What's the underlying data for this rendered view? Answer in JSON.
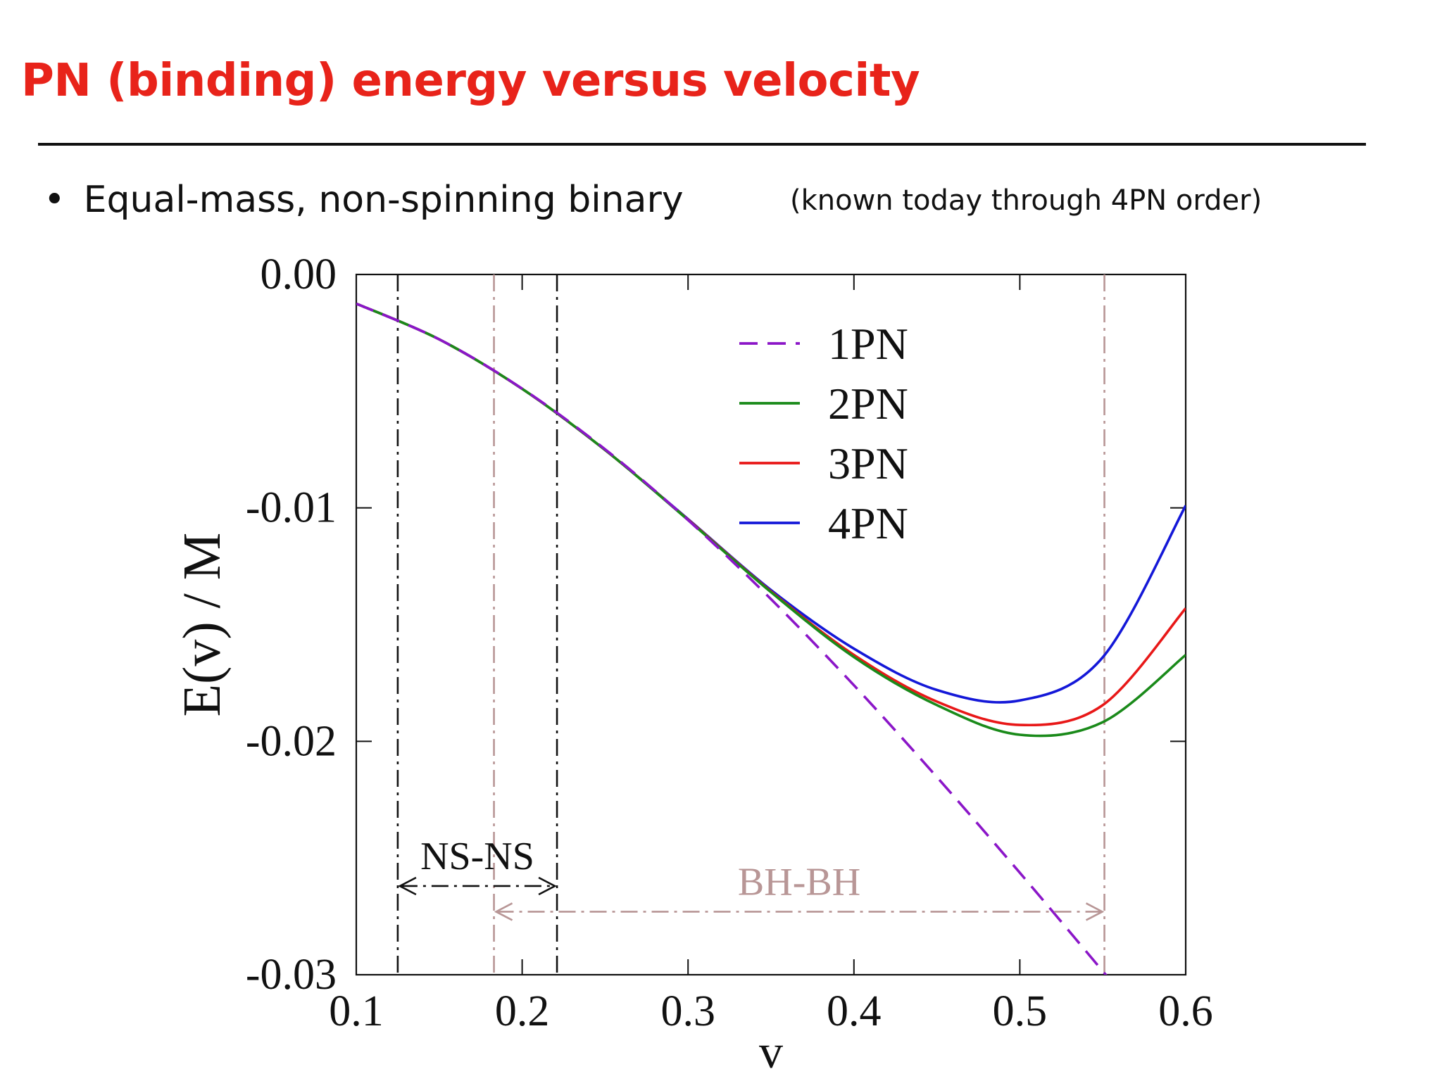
{
  "slide": {
    "title": "PN (binding) energy versus velocity",
    "bullet": "Equal-mass, non-spinning binary",
    "note": "(known today through 4PN order)",
    "title_color": "#e8231a"
  },
  "chart_data": {
    "type": "line",
    "xlabel": "v",
    "ylabel": "E(v) / M",
    "xlim": [
      0.1,
      0.6
    ],
    "ylim": [
      -0.03,
      0.0
    ],
    "xticks": [
      "0.1",
      "0.2",
      "0.3",
      "0.4",
      "0.5",
      "0.6"
    ],
    "yticks": [
      "0.00",
      "-0.01",
      "-0.02",
      "-0.03"
    ],
    "grid": false,
    "legend_position": "top-center",
    "series": [
      {
        "name": "1PN",
        "color": "#8b16c8",
        "style": "dashed",
        "x": [
          0.1,
          0.15,
          0.2,
          0.25,
          0.3,
          0.35,
          0.4,
          0.45,
          0.5,
          0.55,
          0.5625
        ],
        "y": [
          -0.00125,
          -0.00278,
          -0.00489,
          -0.00749,
          -0.01052,
          -0.01391,
          -0.0176,
          -0.02153,
          -0.02563,
          -0.02985,
          -0.0309
        ]
      },
      {
        "name": "2PN",
        "color": "#1a8a1a",
        "style": "solid",
        "x": [
          0.1,
          0.15,
          0.2,
          0.25,
          0.3,
          0.35,
          0.4,
          0.45,
          0.5,
          0.55,
          0.6
        ],
        "y": [
          -0.00125,
          -0.00278,
          -0.0049,
          -0.00752,
          -0.01052,
          -0.01361,
          -0.01639,
          -0.01845,
          -0.01972,
          -0.01918,
          -0.0163
        ]
      },
      {
        "name": "3PN",
        "color": "#e81818",
        "style": "solid",
        "x": [
          0.1,
          0.15,
          0.2,
          0.25,
          0.3,
          0.35,
          0.4,
          0.45,
          0.5,
          0.55,
          0.6
        ],
        "y": [
          -0.00125,
          -0.00278,
          -0.0049,
          -0.00752,
          -0.0105,
          -0.01358,
          -0.0163,
          -0.0183,
          -0.0193,
          -0.01845,
          -0.0143
        ]
      },
      {
        "name": "4PN",
        "color": "#1418d8",
        "style": "solid",
        "x": [
          0.1,
          0.15,
          0.2,
          0.25,
          0.3,
          0.35,
          0.4,
          0.45,
          0.5,
          0.55,
          0.6
        ],
        "y": [
          -0.00125,
          -0.00278,
          -0.0049,
          -0.00752,
          -0.01048,
          -0.01352,
          -0.01603,
          -0.0178,
          -0.01825,
          -0.0164,
          -0.0099
        ]
      }
    ],
    "vertical_lines": [
      {
        "x": 0.125,
        "color": "#111111"
      },
      {
        "x": 0.221,
        "color": "#111111"
      },
      {
        "x": 0.183,
        "color": "#b89696"
      },
      {
        "x": 0.551,
        "color": "#b89696"
      }
    ],
    "annotations": [
      {
        "text": "NS-NS",
        "x_from": 0.125,
        "x_to": 0.221,
        "y": -0.0262,
        "color": "#111111"
      },
      {
        "text": "BH-BH",
        "x_from": 0.183,
        "x_to": 0.551,
        "y": -0.0273,
        "color": "#b89696"
      }
    ]
  }
}
